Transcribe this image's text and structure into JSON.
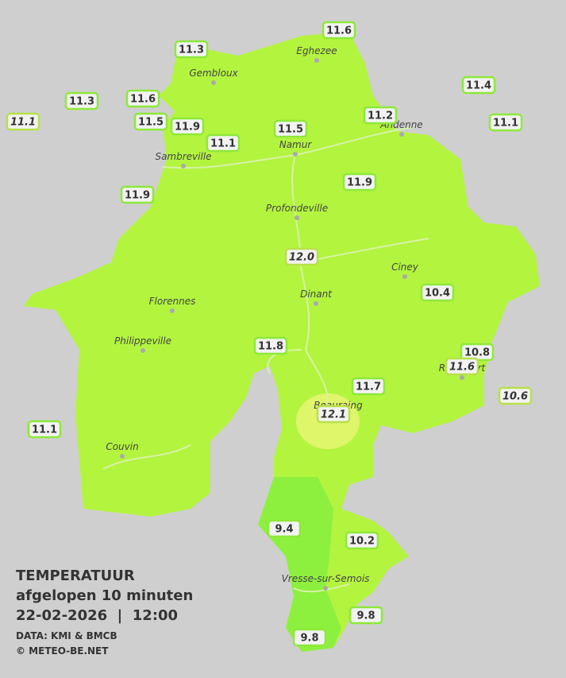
{
  "title": {
    "line1": "TEMPERATUUR",
    "line2": "afgelopen 10 minuten",
    "line3": "22-02-2026  |  12:00",
    "source": "DATA: KMI & BMCB",
    "copyright": "© METEO-BE.NET"
  },
  "cities": [
    "Eghezee",
    "Gembloux",
    "Andenne",
    "Namur",
    "Sambreville",
    "Profondeville",
    "Ciney",
    "Dinant",
    "Florennes",
    "Philippeville",
    "Rochefort",
    "Beauraing",
    "Couvin",
    "Vresse-sur-Semois"
  ],
  "stations": [
    "11.6",
    "11.3",
    "11.4",
    "11.3",
    "11.6",
    "11.1",
    "11.5",
    "11.9",
    "11.2",
    "11.5",
    "11.1",
    "11.1",
    "11.9",
    "11.9",
    "12.0",
    "10.4",
    "11.8",
    "10.8",
    "11.6",
    "11.7",
    "10.6",
    "12.1",
    "11.1",
    "9.4",
    "10.2",
    "9.8",
    "9.8"
  ]
}
